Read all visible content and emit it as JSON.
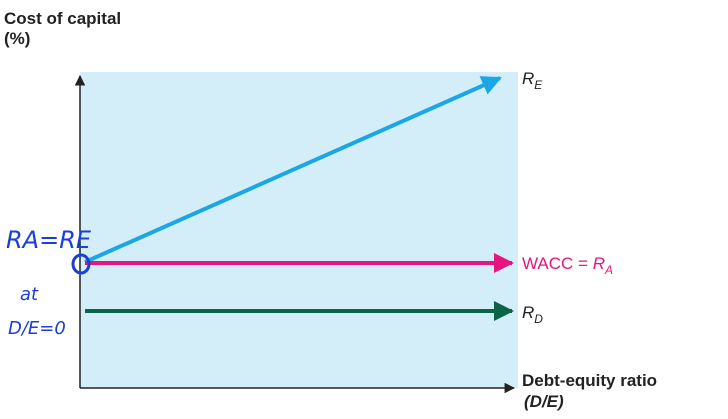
{
  "axes": {
    "y_label": [
      "Cost of capital",
      "(%)"
    ],
    "x_label": [
      "Debt-equity ratio",
      "(D/E)"
    ]
  },
  "lines": [
    {
      "main": "R",
      "sub": "E"
    },
    {
      "prefix": "WACC = ",
      "main": "R",
      "sub": "A"
    },
    {
      "main": "R",
      "sub": "D"
    }
  ],
  "annotations": {
    "equation": "RA=RE",
    "at": "at",
    "condition": "D/E=0"
  }
}
